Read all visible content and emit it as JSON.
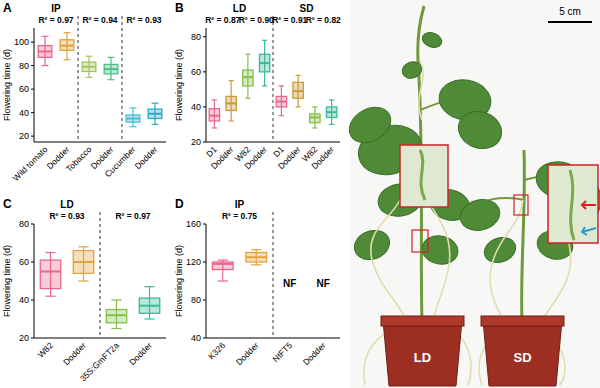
{
  "chart_data": [
    {
      "type": "box",
      "title": "A",
      "ylabel": "Flowering time (d)",
      "ylim": [
        15,
        112
      ],
      "yticks": [
        20,
        40,
        60,
        80,
        100
      ],
      "sections": [
        {
          "label": "IP",
          "pairs": [
            {
              "categories": [
                "Wild tomato",
                "Dodder"
              ],
              "annotation": "R² = 0.97",
              "colors": [
                "#e8698c",
                "#e0a43c"
              ],
              "boxes": [
                {
                  "min": 80,
                  "q1": 87,
                  "median": 92,
                  "q3": 97,
                  "max": 105
                },
                {
                  "min": 85,
                  "q1": 93,
                  "median": 97,
                  "q3": 102,
                  "max": 108
                }
              ]
            }
          ]
        },
        {
          "pairs": [
            {
              "categories": [
                "Tobacco",
                "Dodder"
              ],
              "annotation": "R² = 0.94",
              "colors": [
                "#a3c45e",
                "#4fbb85"
              ],
              "boxes": [
                {
                  "min": 70,
                  "q1": 75,
                  "median": 79,
                  "q3": 83,
                  "max": 88
                },
                {
                  "min": 68,
                  "q1": 73,
                  "median": 77,
                  "q3": 81,
                  "max": 87
                }
              ]
            }
          ]
        },
        {
          "pairs": [
            {
              "categories": [
                "Cucumber",
                "Dodder"
              ],
              "annotation": "R² = 0.93",
              "colors": [
                "#45bcd0",
                "#2fa7c9"
              ],
              "boxes": [
                {
                  "min": 28,
                  "q1": 32,
                  "median": 35,
                  "q3": 38,
                  "max": 44
                },
                {
                  "min": 30,
                  "q1": 35,
                  "median": 39,
                  "q3": 43,
                  "max": 48
                }
              ]
            }
          ]
        }
      ]
    },
    {
      "type": "box",
      "title": "B",
      "ylabel": "Flowering time (d)",
      "ylim": [
        20,
        85
      ],
      "yticks": [
        20,
        40,
        60,
        80
      ],
      "sections": [
        {
          "label": "LD",
          "pairs": [
            {
              "categories": [
                "D1",
                "Dodder"
              ],
              "annotation": "R² = 0.87",
              "colors": [
                "#e8698c",
                "#c99a3a"
              ],
              "boxes": [
                {
                  "min": 28,
                  "q1": 32,
                  "median": 35,
                  "q3": 39,
                  "max": 44
                },
                {
                  "min": 32,
                  "q1": 38,
                  "median": 42,
                  "q3": 46,
                  "max": 55
                }
              ]
            },
            {
              "categories": [
                "W82",
                "Dodder"
              ],
              "annotation": "R² = 0.90",
              "colors": [
                "#86bf4f",
                "#3db89b"
              ],
              "boxes": [
                {
                  "min": 45,
                  "q1": 52,
                  "median": 57,
                  "q3": 61,
                  "max": 70
                },
                {
                  "min": 52,
                  "q1": 60,
                  "median": 65,
                  "q3": 70,
                  "max": 78
                }
              ]
            }
          ]
        },
        {
          "label": "SD",
          "pairs": [
            {
              "categories": [
                "D1",
                "Dodder"
              ],
              "annotation": "R² = 0.91",
              "colors": [
                "#e8698c",
                "#c99a3a"
              ],
              "boxes": [
                {
                  "min": 35,
                  "q1": 40,
                  "median": 43,
                  "q3": 46,
                  "max": 52
                },
                {
                  "min": 40,
                  "q1": 45,
                  "median": 49,
                  "q3": 54,
                  "max": 58
                }
              ]
            },
            {
              "categories": [
                "W82",
                "Dodder"
              ],
              "annotation": "R² = 0.82",
              "colors": [
                "#86bf4f",
                "#3db89b"
              ],
              "boxes": [
                {
                  "min": 28,
                  "q1": 31,
                  "median": 34,
                  "q3": 36,
                  "max": 40
                },
                {
                  "min": 30,
                  "q1": 34,
                  "median": 37,
                  "q3": 40,
                  "max": 44
                }
              ]
            }
          ]
        }
      ]
    },
    {
      "type": "box",
      "title": "C",
      "ylabel": "Flowering time (d)",
      "ylim": [
        20,
        80
      ],
      "yticks": [
        20,
        40,
        60,
        80
      ],
      "sections": [
        {
          "label": "LD",
          "pairs": [
            {
              "categories": [
                "W82",
                "Dodder"
              ],
              "annotation": "R² = 0.93",
              "colors": [
                "#e8698c",
                "#e0a43c"
              ],
              "boxes": [
                {
                  "min": 42,
                  "q1": 46,
                  "median": 55,
                  "q3": 61,
                  "max": 65
                },
                {
                  "min": 50,
                  "q1": 54,
                  "median": 60,
                  "q3": 66,
                  "max": 68
                }
              ]
            }
          ]
        },
        {
          "pairs": [
            {
              "categories": [
                "35S:GmFT2a",
                "Dodder"
              ],
              "annotation": "R² = 0.97",
              "colors": [
                "#86bf4f",
                "#3db89b"
              ],
              "boxes": [
                {
                  "min": 25,
                  "q1": 28,
                  "median": 32,
                  "q3": 35,
                  "max": 40
                },
                {
                  "min": 30,
                  "q1": 33,
                  "median": 37,
                  "q3": 41,
                  "max": 47
                }
              ]
            }
          ]
        }
      ]
    },
    {
      "type": "box",
      "title": "D",
      "ylabel": "Flowering time (d)",
      "ylim": [
        40,
        160
      ],
      "yticks": [
        40,
        80,
        120,
        160
      ],
      "sections": [
        {
          "label": "IP",
          "pairs": [
            {
              "categories": [
                "K326",
                "Dodder"
              ],
              "annotation": "R² = 0.75",
              "colors": [
                "#e8698c",
                "#e0a43c"
              ],
              "boxes": [
                {
                  "min": 100,
                  "q1": 112,
                  "median": 118,
                  "q3": 120,
                  "max": 122
                },
                {
                  "min": 117,
                  "q1": 120,
                  "median": 125,
                  "q3": 130,
                  "max": 133
                }
              ]
            }
          ]
        },
        {
          "pairs": [
            {
              "categories": [
                "NtFT5",
                "Dodder"
              ],
              "no_data_labels": [
                "NF",
                "NF"
              ]
            }
          ]
        }
      ]
    }
  ],
  "photo": {
    "scale_bar": "5 cm",
    "pot_labels": [
      "LD",
      "SD"
    ]
  }
}
